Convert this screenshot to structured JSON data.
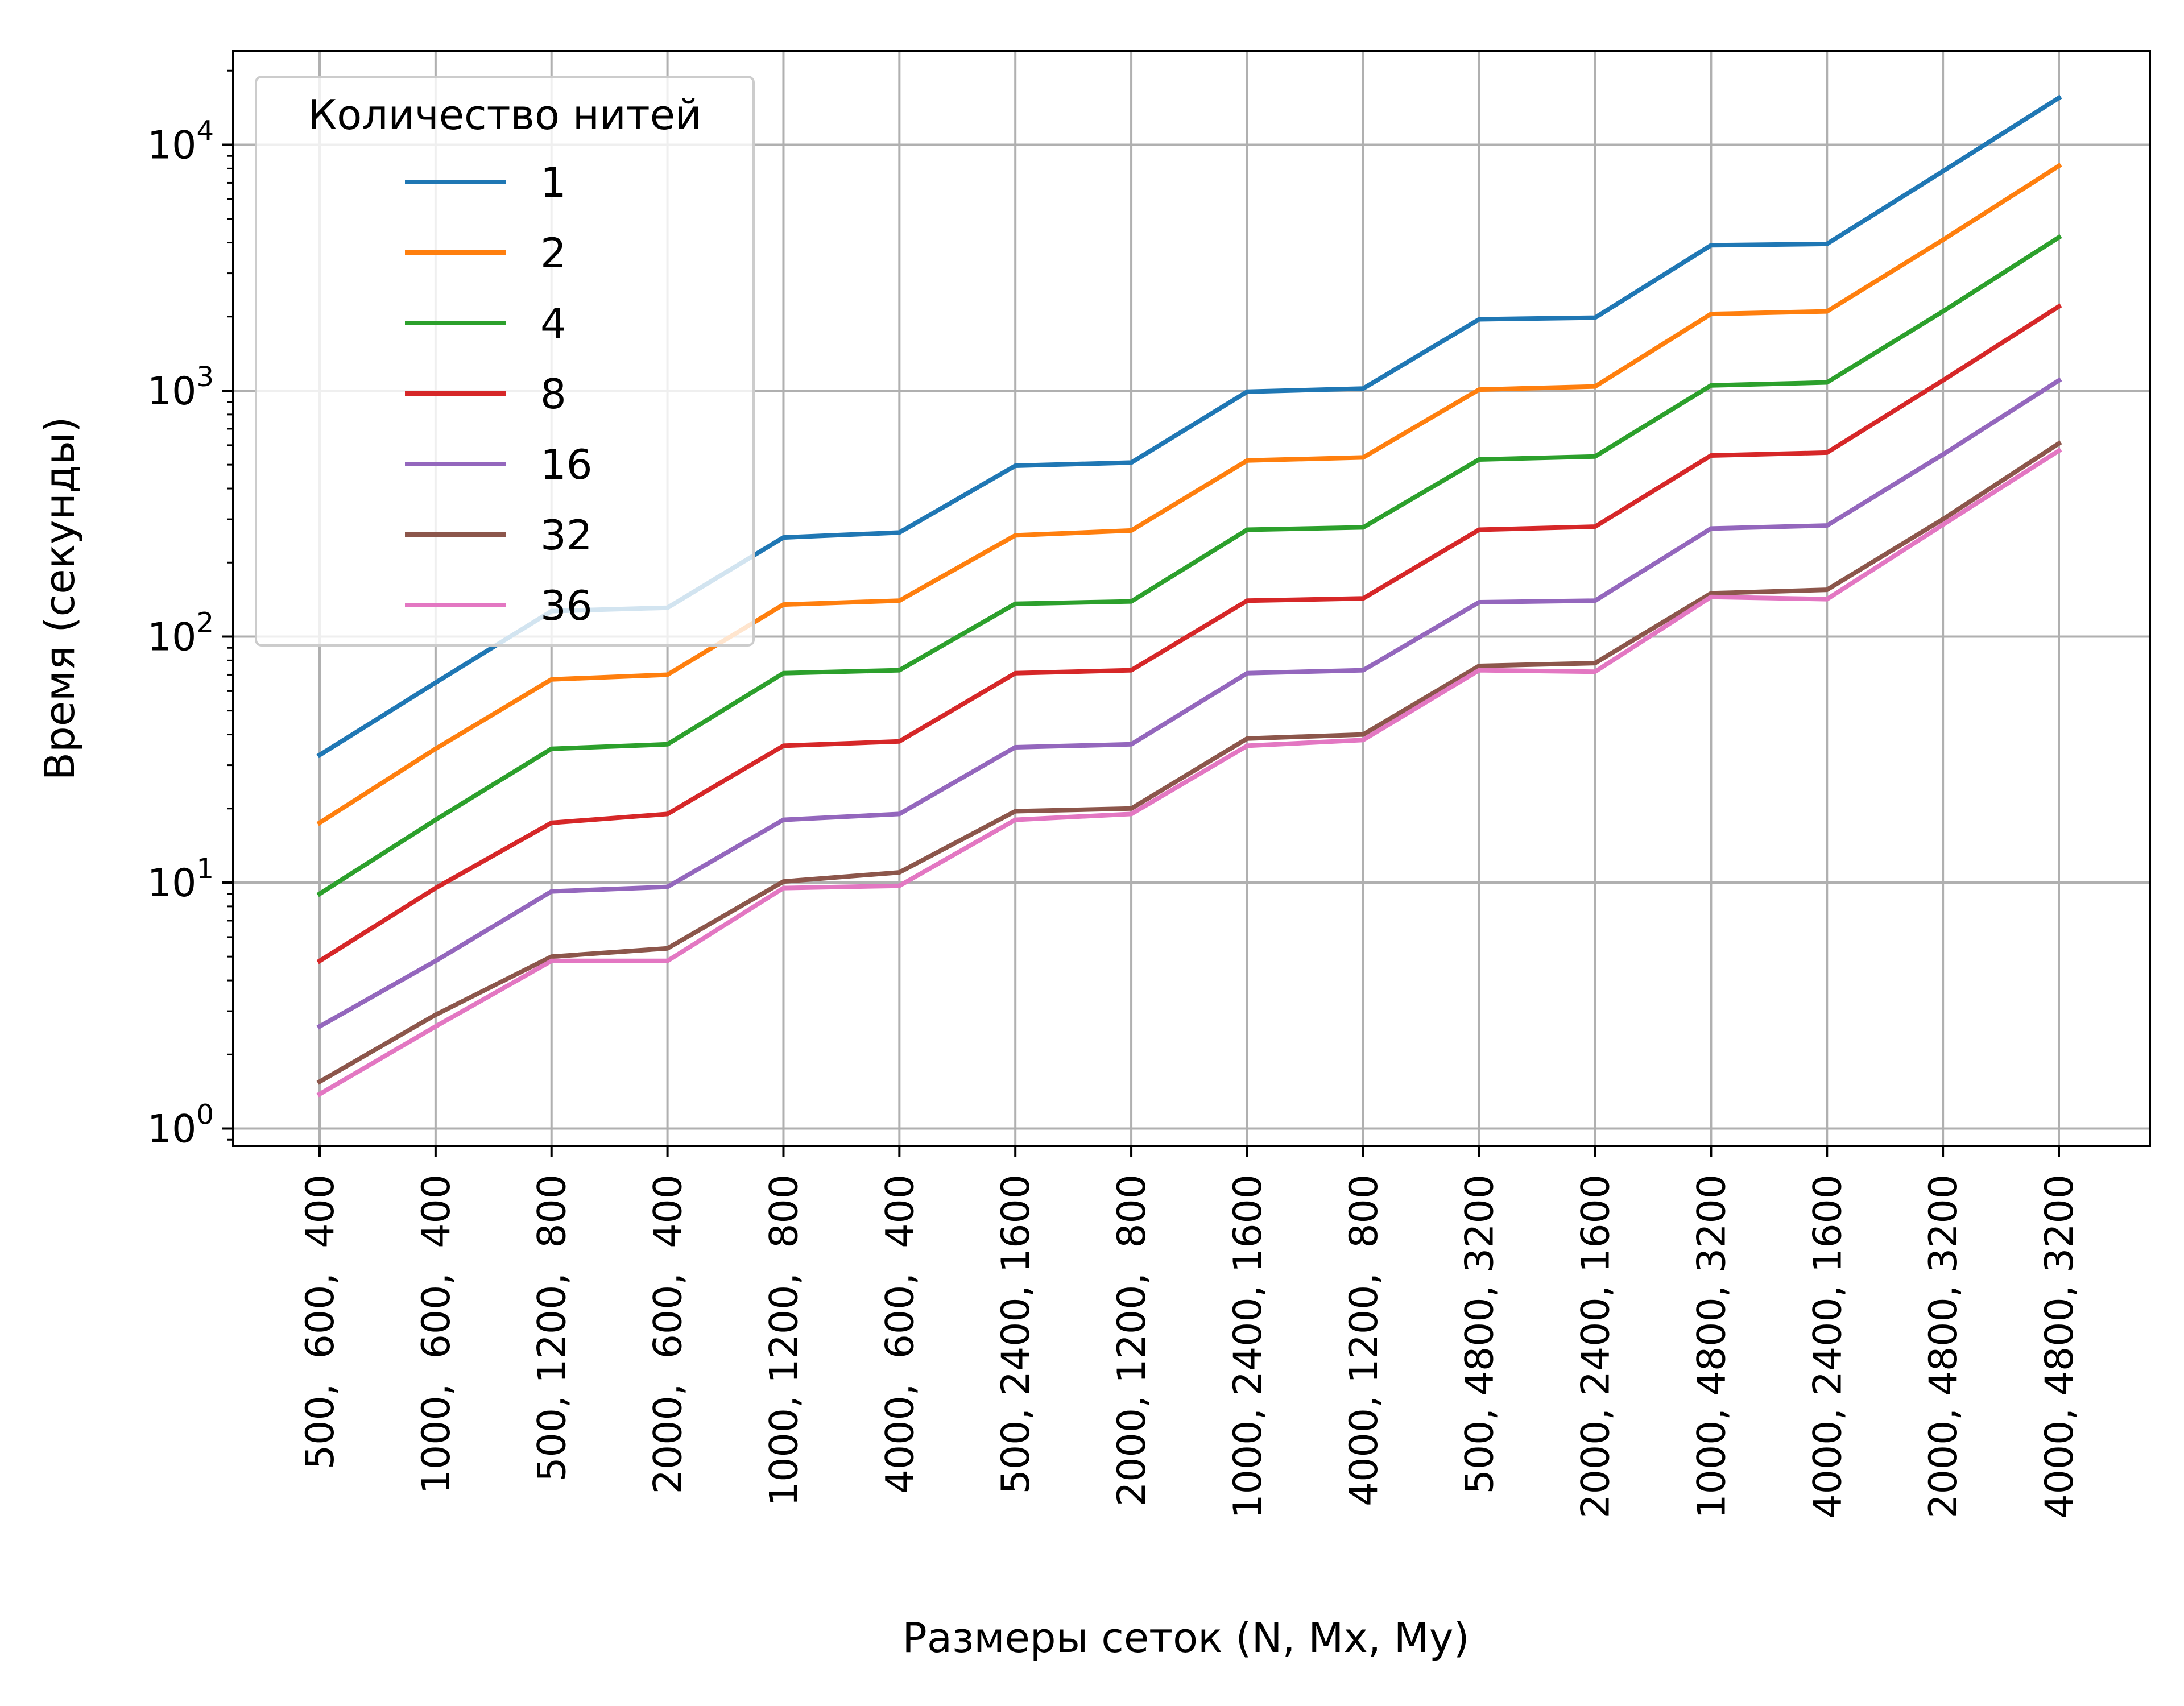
{
  "chart_data": {
    "type": "line",
    "ylabel": "Время (секунды)",
    "xlabel": "Размеры сеток (N, Mx, My)",
    "y_scale": "log",
    "ylim": [
      0.85,
      24000
    ],
    "grid": true,
    "y_ticks": [
      {
        "value": 1,
        "base": "10",
        "exp": "0"
      },
      {
        "value": 10,
        "base": "10",
        "exp": "1"
      },
      {
        "value": 100,
        "base": "10",
        "exp": "2"
      },
      {
        "value": 1000,
        "base": "10",
        "exp": "3"
      },
      {
        "value": 10000,
        "base": "10",
        "exp": "4"
      }
    ],
    "categories": [
      "500,  600,  400",
      "1000,  600,  400",
      "500, 1200,  800",
      "2000,  600,  400",
      "1000, 1200,  800",
      "4000,  600,  400",
      "500, 2400, 1600",
      "2000, 1200,  800",
      "1000, 2400, 1600",
      "4000, 1200,  800",
      "500, 4800, 3200",
      "2000, 2400, 1600",
      "1000, 4800, 3200",
      "4000, 2400, 1600",
      "2000, 4800, 3200",
      "4000, 4800, 3200"
    ],
    "legend": {
      "title": "Количество нитей",
      "placement": "upper left"
    },
    "series": [
      {
        "name": "1",
        "color": "#1f77b4",
        "values": [
          33,
          65,
          127,
          131,
          253,
          265,
          495,
          510,
          990,
          1020,
          1950,
          1980,
          3900,
          3950,
          7800,
          15500
        ]
      },
      {
        "name": "2",
        "color": "#ff7f0e",
        "values": [
          17.5,
          35,
          67,
          70,
          135,
          140,
          258,
          270,
          520,
          535,
          1010,
          1040,
          2050,
          2100,
          4100,
          8200
        ]
      },
      {
        "name": "4",
        "color": "#2ca02c",
        "values": [
          9.0,
          18,
          35,
          36.5,
          71,
          73,
          136,
          139,
          272,
          278,
          525,
          540,
          1050,
          1080,
          2100,
          4200
        ]
      },
      {
        "name": "8",
        "color": "#d62728",
        "values": [
          4.8,
          9.5,
          17.5,
          19,
          36,
          37.5,
          71,
          73,
          140,
          143,
          272,
          280,
          545,
          560,
          1100,
          2200
        ]
      },
      {
        "name": "16",
        "color": "#9467bd",
        "values": [
          2.6,
          4.8,
          9.2,
          9.6,
          18,
          19,
          35.5,
          36.5,
          71,
          73,
          138,
          140,
          275,
          283,
          550,
          1100
        ]
      },
      {
        "name": "32",
        "color": "#8c564b",
        "values": [
          1.55,
          2.9,
          5.0,
          5.4,
          10.1,
          11,
          19.5,
          20,
          38.5,
          40,
          76,
          78,
          150,
          155,
          300,
          610
        ]
      },
      {
        "name": "36",
        "color": "#e377c2",
        "values": [
          1.38,
          2.6,
          4.8,
          4.8,
          9.5,
          9.7,
          18,
          19,
          36,
          38,
          73,
          72,
          145,
          142,
          285,
          570
        ]
      }
    ]
  }
}
